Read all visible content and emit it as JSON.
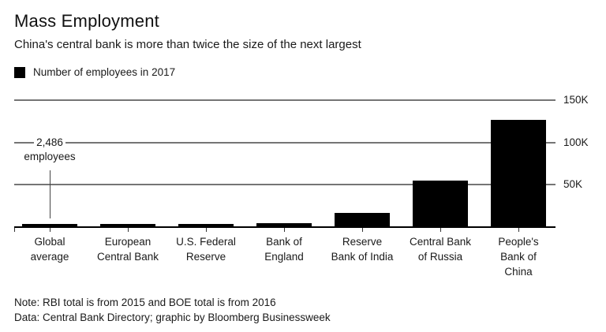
{
  "header": {
    "title": "Mass Employment",
    "subtitle": "China's central bank is more than twice the size of the next largest"
  },
  "legend": {
    "label": "Number of employees in 2017",
    "swatch_color": "#000000"
  },
  "annotation": {
    "line1": "2,486",
    "line2": "employees",
    "target_category": "Global average"
  },
  "chart_data": {
    "type": "bar",
    "title": "Mass Employment",
    "subtitle": "China's central bank is more than twice the size of the next largest",
    "legend_entries": [
      "Number of employees in 2017"
    ],
    "legend_position": "top-left",
    "categories": [
      "Global average",
      "European Central Bank",
      "U.S. Federal Reserve",
      "Bank of England",
      "Reserve Bank of India",
      "Central Bank of Russia",
      "People's Bank of China"
    ],
    "xtick_lines": [
      [
        "Global",
        "average"
      ],
      [
        "European",
        "Central Bank"
      ],
      [
        "U.S. Federal",
        "Reserve"
      ],
      [
        "Bank of",
        "England"
      ],
      [
        "Reserve",
        "Bank of India"
      ],
      [
        "Central Bank",
        "of Russia"
      ],
      [
        "People's",
        "Bank of",
        "China"
      ]
    ],
    "values": [
      2486,
      3400,
      2700,
      4300,
      17000,
      55000,
      127000
    ],
    "xlabel": "",
    "ylabel": "",
    "ylim": [
      0,
      150000
    ],
    "yticks": [
      {
        "value": 50000,
        "label": "50K"
      },
      {
        "value": 100000,
        "label": "100K"
      },
      {
        "value": 150000,
        "label": "150K"
      }
    ],
    "ytick_side": "right",
    "grid": true,
    "bar_color": "#000000",
    "annotations": [
      "2,486 employees (Global average bar)"
    ]
  },
  "footer": {
    "note": "Note: RBI total is from 2015 and BOE total is from 2016",
    "source": "Data: Central Bank Directory; graphic by Bloomberg Businessweek"
  },
  "colors": {
    "bar": "#000000",
    "gridline": "#757575",
    "axis": "#000000",
    "text": "#1a1a1a"
  }
}
